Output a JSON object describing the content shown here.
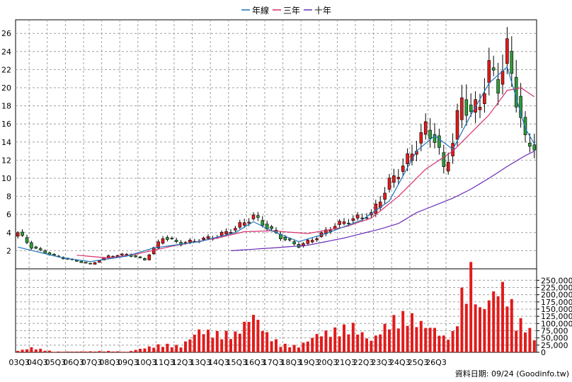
{
  "chart_data": {
    "type": "candlestick",
    "legend": [
      {
        "name": "年線",
        "color": "#1e73be"
      },
      {
        "name": "三年",
        "color": "#d6306d"
      },
      {
        "name": "十年",
        "color": "#6a2bb8"
      }
    ],
    "x_labels": [
      "03Q3",
      "04Q3",
      "05Q3",
      "06Q3",
      "07Q3",
      "08Q3",
      "09Q3",
      "10Q3",
      "11Q3",
      "12Q3",
      "13Q3",
      "14Q3",
      "15Q3",
      "16Q3",
      "17Q3",
      "18Q3",
      "19Q3",
      "20Q3",
      "21Q3",
      "22Q3",
      "23Q3",
      "24Q3",
      "25Q3",
      "26Q3"
    ],
    "price_axis": {
      "min": 0,
      "max": 27.5,
      "ticks": [
        2,
        4,
        6,
        8,
        10,
        12,
        14,
        16,
        18,
        20,
        22,
        24,
        26
      ]
    },
    "volume_axis": {
      "min": 0,
      "max": 290000,
      "ticks": [
        0,
        25000,
        50000,
        75000,
        100000,
        125000,
        150000,
        175000,
        200000,
        225000,
        250000
      ],
      "tick_labels": [
        "0",
        "25,000",
        "50,000",
        "75,000",
        "100,000",
        "125,000",
        "150,000",
        "175,000",
        "200,000",
        "225,000",
        "250,000"
      ]
    },
    "anchors": [
      {
        "i": 0,
        "p": 4.0,
        "v": 5000
      },
      {
        "i": 3,
        "p": 2.4,
        "v": 15000
      },
      {
        "i": 8,
        "p": 1.4,
        "v": 2000
      },
      {
        "i": 16,
        "p": 0.5,
        "v": 3000
      },
      {
        "i": 20,
        "p": 1.4,
        "v": 4000
      },
      {
        "i": 24,
        "p": 1.6,
        "v": 1500
      },
      {
        "i": 28,
        "p": 1.0,
        "v": 15000
      },
      {
        "i": 32,
        "p": 3.5,
        "v": 25000
      },
      {
        "i": 36,
        "p": 2.8,
        "v": 20000
      },
      {
        "i": 40,
        "p": 3.2,
        "v": 75000
      },
      {
        "i": 44,
        "p": 3.6,
        "v": 60000
      },
      {
        "i": 48,
        "p": 4.5,
        "v": 60000
      },
      {
        "i": 52,
        "p": 5.8,
        "v": 130000
      },
      {
        "i": 55,
        "p": 4.6,
        "v": 60000
      },
      {
        "i": 58,
        "p": 3.5,
        "v": 25000
      },
      {
        "i": 62,
        "p": 2.5,
        "v": 20000
      },
      {
        "i": 66,
        "p": 3.5,
        "v": 60000
      },
      {
        "i": 70,
        "p": 4.8,
        "v": 70000
      },
      {
        "i": 74,
        "p": 5.5,
        "v": 85000
      },
      {
        "i": 78,
        "p": 6.0,
        "v": 40000
      },
      {
        "i": 82,
        "p": 9.5,
        "v": 100000
      },
      {
        "i": 86,
        "p": 12.0,
        "v": 120000
      },
      {
        "i": 90,
        "p": 15.5,
        "v": 90000
      },
      {
        "i": 92,
        "p": 14.5,
        "v": 80000
      },
      {
        "i": 94,
        "p": 11.0,
        "v": 50000
      },
      {
        "i": 96,
        "p": 14.0,
        "v": 60000
      },
      {
        "i": 98,
        "p": 19.0,
        "v": 180000
      },
      {
        "i": 100,
        "p": 17.0,
        "v": 260000
      },
      {
        "i": 102,
        "p": 18.5,
        "v": 140000
      },
      {
        "i": 104,
        "p": 22.0,
        "v": 180000
      },
      {
        "i": 106,
        "p": 20.5,
        "v": 220000
      },
      {
        "i": 108,
        "p": 24.0,
        "v": 200000
      },
      {
        "i": 110,
        "p": 19.0,
        "v": 100000
      },
      {
        "i": 112,
        "p": 14.0,
        "v": 90000
      },
      {
        "i": 114,
        "p": 13.8,
        "v": 50000
      }
    ],
    "year_line": [
      {
        "i": 0,
        "p": 2.4
      },
      {
        "i": 10,
        "p": 1.2
      },
      {
        "i": 16,
        "p": 0.8
      },
      {
        "i": 24,
        "p": 1.4
      },
      {
        "i": 30,
        "p": 2.3
      },
      {
        "i": 40,
        "p": 3.0
      },
      {
        "i": 48,
        "p": 4.0
      },
      {
        "i": 52,
        "p": 5.2
      },
      {
        "i": 56,
        "p": 4.2
      },
      {
        "i": 62,
        "p": 3.0
      },
      {
        "i": 68,
        "p": 3.9
      },
      {
        "i": 76,
        "p": 5.4
      },
      {
        "i": 82,
        "p": 7.5
      },
      {
        "i": 88,
        "p": 13.0
      },
      {
        "i": 92,
        "p": 14.7
      },
      {
        "i": 96,
        "p": 13.2
      },
      {
        "i": 100,
        "p": 17.0
      },
      {
        "i": 104,
        "p": 20.5
      },
      {
        "i": 108,
        "p": 22.3
      },
      {
        "i": 112,
        "p": 15.5
      },
      {
        "i": 114,
        "p": 13.8
      }
    ],
    "three_year_line": [
      {
        "i": 13,
        "p": 1.5
      },
      {
        "i": 20,
        "p": 1.2
      },
      {
        "i": 26,
        "p": 1.6
      },
      {
        "i": 34,
        "p": 2.5
      },
      {
        "i": 44,
        "p": 3.4
      },
      {
        "i": 50,
        "p": 4.1
      },
      {
        "i": 56,
        "p": 4.2
      },
      {
        "i": 64,
        "p": 3.9
      },
      {
        "i": 72,
        "p": 4.6
      },
      {
        "i": 78,
        "p": 5.6
      },
      {
        "i": 84,
        "p": 8.0
      },
      {
        "i": 90,
        "p": 11.0
      },
      {
        "i": 96,
        "p": 13.0
      },
      {
        "i": 100,
        "p": 15.0
      },
      {
        "i": 104,
        "p": 17.0
      },
      {
        "i": 108,
        "p": 19.7
      },
      {
        "i": 111,
        "p": 20.0
      },
      {
        "i": 114,
        "p": 19.0
      }
    ],
    "ten_year_line": [
      {
        "i": 47,
        "p": 2.0
      },
      {
        "i": 56,
        "p": 2.3
      },
      {
        "i": 64,
        "p": 2.6
      },
      {
        "i": 72,
        "p": 3.4
      },
      {
        "i": 80,
        "p": 4.4
      },
      {
        "i": 84,
        "p": 5.0
      },
      {
        "i": 88,
        "p": 6.2
      },
      {
        "i": 92,
        "p": 7.0
      },
      {
        "i": 96,
        "p": 7.8
      },
      {
        "i": 100,
        "p": 8.8
      },
      {
        "i": 104,
        "p": 10.0
      },
      {
        "i": 108,
        "p": 11.3
      },
      {
        "i": 112,
        "p": 12.5
      },
      {
        "i": 114,
        "p": 13.0
      }
    ],
    "source": "資料日期: 09/24  (Goodinfo.tw)"
  }
}
